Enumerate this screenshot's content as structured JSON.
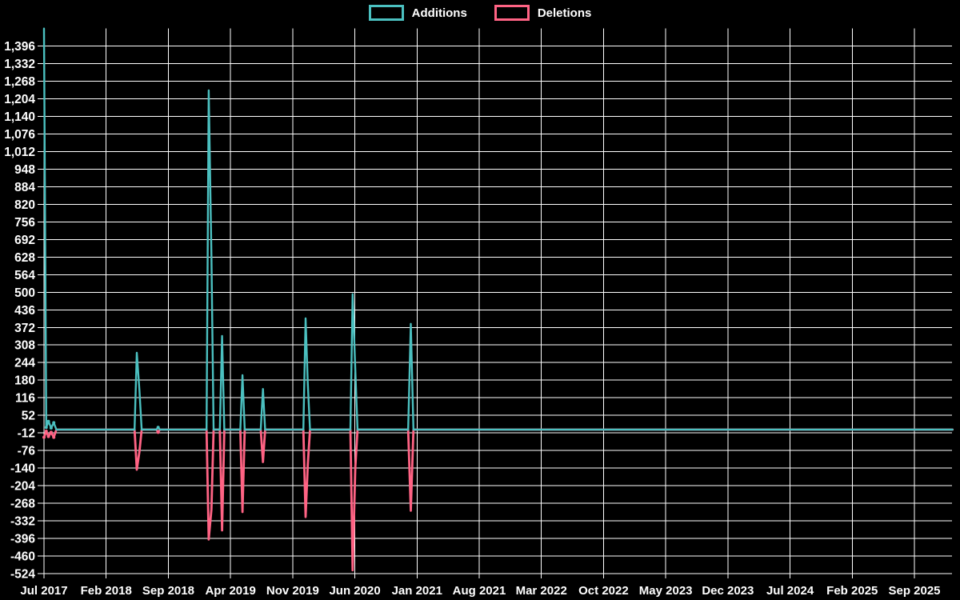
{
  "chart_data": {
    "type": "line",
    "title": "",
    "background_color": "#000000",
    "grid_color": "#ffffff",
    "text_color": "#ffffff",
    "legend_position": "top-center",
    "x_axis": {
      "unit": "months since Jul 2017",
      "months_per_tick": 7,
      "axis_end_month": 102.3,
      "tick_labels": [
        "Jul 2017",
        "Feb 2018",
        "Sep 2018",
        "Apr 2019",
        "Nov 2019",
        "Jun 2020",
        "Jan 2021",
        "Aug 2021",
        "Mar 2022",
        "Oct 2022",
        "May 2023",
        "Dec 2023",
        "Jul 2024",
        "Feb 2025",
        "Sep 2025"
      ]
    },
    "y_axis": {
      "min": -524,
      "max": 1460,
      "tick_step": 64,
      "tick_labels": [
        "1,396",
        "1,332",
        "1,268",
        "1,204",
        "1,140",
        "1,076",
        "1,012",
        "948",
        "884",
        "820",
        "756",
        "692",
        "628",
        "564",
        "500",
        "436",
        "372",
        "308",
        "244",
        "180",
        "116",
        "52",
        "-12",
        "-76",
        "-140",
        "-204",
        "-268",
        "-332",
        "-396",
        "-460",
        "-524"
      ]
    },
    "series": [
      {
        "name": "Additions",
        "color": "#4bc0c0",
        "points": [
          [
            0,
            1460
          ],
          [
            0.25,
            8
          ],
          [
            0.5,
            30
          ],
          [
            0.8,
            6
          ],
          [
            1.1,
            25
          ],
          [
            1.4,
            0
          ],
          [
            10.2,
            0
          ],
          [
            10.45,
            280
          ],
          [
            10.75,
            143
          ],
          [
            11.0,
            0
          ],
          [
            12.65,
            0
          ],
          [
            12.85,
            8
          ],
          [
            13.05,
            0
          ],
          [
            18.3,
            0
          ],
          [
            18.55,
            1235
          ],
          [
            18.85,
            630
          ],
          [
            19.1,
            0
          ],
          [
            19.8,
            0
          ],
          [
            20.05,
            341
          ],
          [
            20.3,
            0
          ],
          [
            22.1,
            0
          ],
          [
            22.35,
            198
          ],
          [
            22.6,
            0
          ],
          [
            24.4,
            0
          ],
          [
            24.65,
            148
          ],
          [
            24.9,
            0
          ],
          [
            29.2,
            0
          ],
          [
            29.45,
            405
          ],
          [
            29.7,
            170
          ],
          [
            29.95,
            0
          ],
          [
            34.5,
            0
          ],
          [
            34.75,
            493
          ],
          [
            35.05,
            220
          ],
          [
            35.3,
            0
          ],
          [
            41.0,
            0
          ],
          [
            41.3,
            385
          ],
          [
            41.6,
            0
          ],
          [
            102.3,
            0
          ]
        ]
      },
      {
        "name": "Deletions",
        "color": "#ff6384",
        "points": [
          [
            0,
            -28
          ],
          [
            0.25,
            -6
          ],
          [
            0.5,
            -25
          ],
          [
            0.8,
            -10
          ],
          [
            1.1,
            -28
          ],
          [
            1.4,
            0
          ],
          [
            10.2,
            0
          ],
          [
            10.45,
            -146
          ],
          [
            10.75,
            -80
          ],
          [
            11.0,
            0
          ],
          [
            12.65,
            0
          ],
          [
            12.85,
            -10
          ],
          [
            13.05,
            0
          ],
          [
            18.3,
            0
          ],
          [
            18.55,
            -400
          ],
          [
            18.85,
            -290
          ],
          [
            19.1,
            0
          ],
          [
            19.8,
            0
          ],
          [
            20.05,
            -367
          ],
          [
            20.3,
            0
          ],
          [
            22.1,
            0
          ],
          [
            22.35,
            -300
          ],
          [
            22.6,
            0
          ],
          [
            24.4,
            0
          ],
          [
            24.65,
            -118
          ],
          [
            24.9,
            0
          ],
          [
            29.2,
            0
          ],
          [
            29.45,
            -318
          ],
          [
            29.7,
            -130
          ],
          [
            29.95,
            0
          ],
          [
            34.5,
            0
          ],
          [
            34.75,
            -512
          ],
          [
            35.05,
            -140
          ],
          [
            35.3,
            0
          ],
          [
            41.0,
            0
          ],
          [
            41.3,
            -295
          ],
          [
            41.6,
            0
          ],
          [
            102.3,
            0
          ]
        ]
      }
    ]
  }
}
